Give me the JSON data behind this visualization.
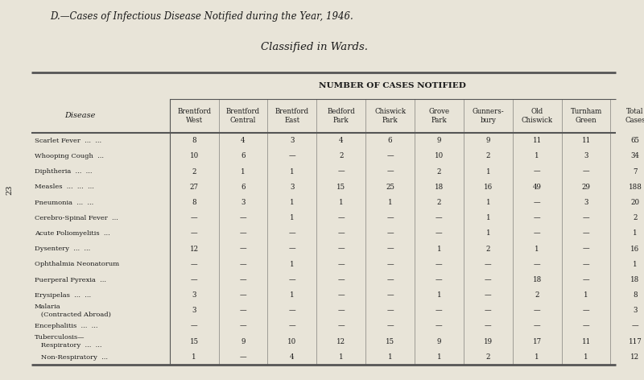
{
  "title": "D.—Cases of Infectious Disease Notified during the Year, 1946.",
  "subtitle": "Classified in Wards.",
  "header_main": "NUMBER OF CASES NOTIFIED",
  "col_headers": [
    "Brentford\nWest",
    "Brentford\nCentral",
    "Brentford\nEast",
    "Bedford\nPark",
    "Chiswick\nPark",
    "Grove\nPark",
    "Gunners-\nbury",
    "Old\nChiswick",
    "Turnham\nGreen",
    "Total\nCases"
  ],
  "disease_col_header": "Disease",
  "diseases": [
    "Scarlet Fever  ...  ...",
    "Whooping Cough  ...",
    "Diphtheria  ...  ...",
    "Measles  ...  ...  ...",
    "Pneumonia  ...  ...",
    "Cerebro-Spinal Fever  ...",
    "Acute Poliomyelitis  ...",
    "Dysentery  ...  ...",
    "Ophthalmia Neonatorum",
    "Puerperal Pyrexia  ...",
    "Erysipelas  ...  ...",
    "Malaria\n   (Contracted Abroad)",
    "Encephalitis  ...  ...",
    "Tuberculosis—\n   Respiratory  ...  ...",
    "   Non-Respiratory  ..."
  ],
  "data": [
    [
      8,
      4,
      3,
      4,
      6,
      9,
      9,
      11,
      11,
      65
    ],
    [
      10,
      6,
      "—",
      2,
      "—",
      10,
      2,
      1,
      3,
      34
    ],
    [
      2,
      1,
      1,
      "—",
      "—",
      2,
      1,
      "—",
      "—",
      7
    ],
    [
      27,
      6,
      3,
      15,
      25,
      18,
      16,
      49,
      29,
      188
    ],
    [
      8,
      3,
      1,
      1,
      1,
      2,
      1,
      "—",
      3,
      20
    ],
    [
      "—",
      "—",
      1,
      "—",
      "—",
      "—",
      1,
      "—",
      "—",
      2
    ],
    [
      "—",
      "—",
      "—",
      "—",
      "—",
      "—",
      1,
      "—",
      "—",
      1
    ],
    [
      12,
      "—",
      "—",
      "—",
      "—",
      1,
      2,
      1,
      "—",
      16
    ],
    [
      "—",
      "—",
      1,
      "—",
      "—",
      "—",
      "—",
      "—",
      "—",
      1
    ],
    [
      "—",
      "—",
      "—",
      "—",
      "—",
      "—",
      "—",
      18,
      "—",
      18
    ],
    [
      3,
      "—",
      1,
      "—",
      "—",
      1,
      "—",
      2,
      1,
      8
    ],
    [
      3,
      "—",
      "—",
      "—",
      "—",
      "—",
      "—",
      "—",
      "—",
      3
    ],
    [
      "—",
      "—",
      "—",
      "—",
      "—",
      "—",
      "—",
      "—",
      "—",
      "—"
    ],
    [
      15,
      9,
      10,
      12,
      15,
      9,
      19,
      17,
      11,
      117
    ],
    [
      1,
      "—",
      4,
      1,
      1,
      1,
      2,
      1,
      1,
      12
    ]
  ],
  "bg_color": "#e8e4d8",
  "table_bg": "#e8e4d8",
  "text_color": "#1a1a1a",
  "line_color": "#555555"
}
